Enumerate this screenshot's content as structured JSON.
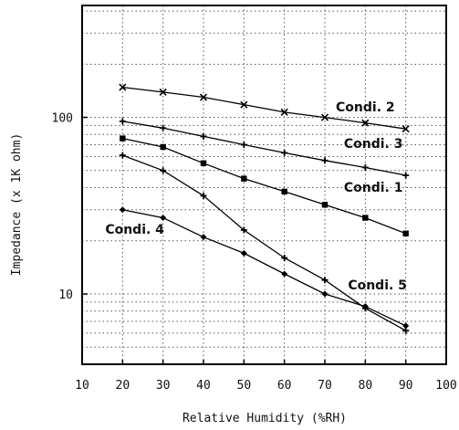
{
  "chart_data": {
    "type": "line",
    "xlabel": "Relative Humidity (%RH)",
    "ylabel": "Impedance (x 1K ohm)",
    "xlim": [
      10,
      100
    ],
    "ylim": [
      4,
      430
    ],
    "yscale": "log",
    "grid": true,
    "x_ticks": [
      10,
      20,
      30,
      40,
      50,
      60,
      70,
      80,
      90,
      100
    ],
    "x_tick_labels": [
      "10",
      "20",
      "30",
      "40",
      "50",
      "60",
      "70",
      "80",
      "90",
      "100"
    ],
    "y_ticks": [
      10,
      100
    ],
    "y_tick_labels": [
      "10",
      "100"
    ],
    "x": [
      20,
      30,
      40,
      50,
      60,
      70,
      80,
      90
    ],
    "series": [
      {
        "name": "Condi. 2",
        "marker": "x",
        "values": [
          148,
          139,
          130,
          118,
          107,
          100,
          93,
          86
        ]
      },
      {
        "name": "Condi. 3",
        "marker": "+",
        "values": [
          95,
          87,
          78,
          70,
          63,
          57,
          52,
          47
        ]
      },
      {
        "name": "Condi. 1",
        "marker": "square",
        "values": [
          76,
          68,
          55,
          45,
          38,
          32,
          27,
          22
        ]
      },
      {
        "name": "Condi. 4",
        "marker": "diamond",
        "values": [
          30,
          27,
          21,
          17,
          13,
          10,
          8.5,
          6.6
        ]
      },
      {
        "name": "Condi. 5",
        "marker": "plus",
        "values": [
          61,
          50,
          36,
          23,
          16,
          12,
          8.3,
          6.2
        ]
      }
    ],
    "labels": [
      {
        "text": "Condi. 2",
        "x": 80,
        "y": 108
      },
      {
        "text": "Condi. 3",
        "x": 82,
        "y": 67
      },
      {
        "text": "Condi. 1",
        "x": 82,
        "y": 38
      },
      {
        "text": "Condi. 4",
        "x": 23,
        "y": 22
      },
      {
        "text": "Condi. 5",
        "x": 83,
        "y": 10.6
      }
    ]
  }
}
